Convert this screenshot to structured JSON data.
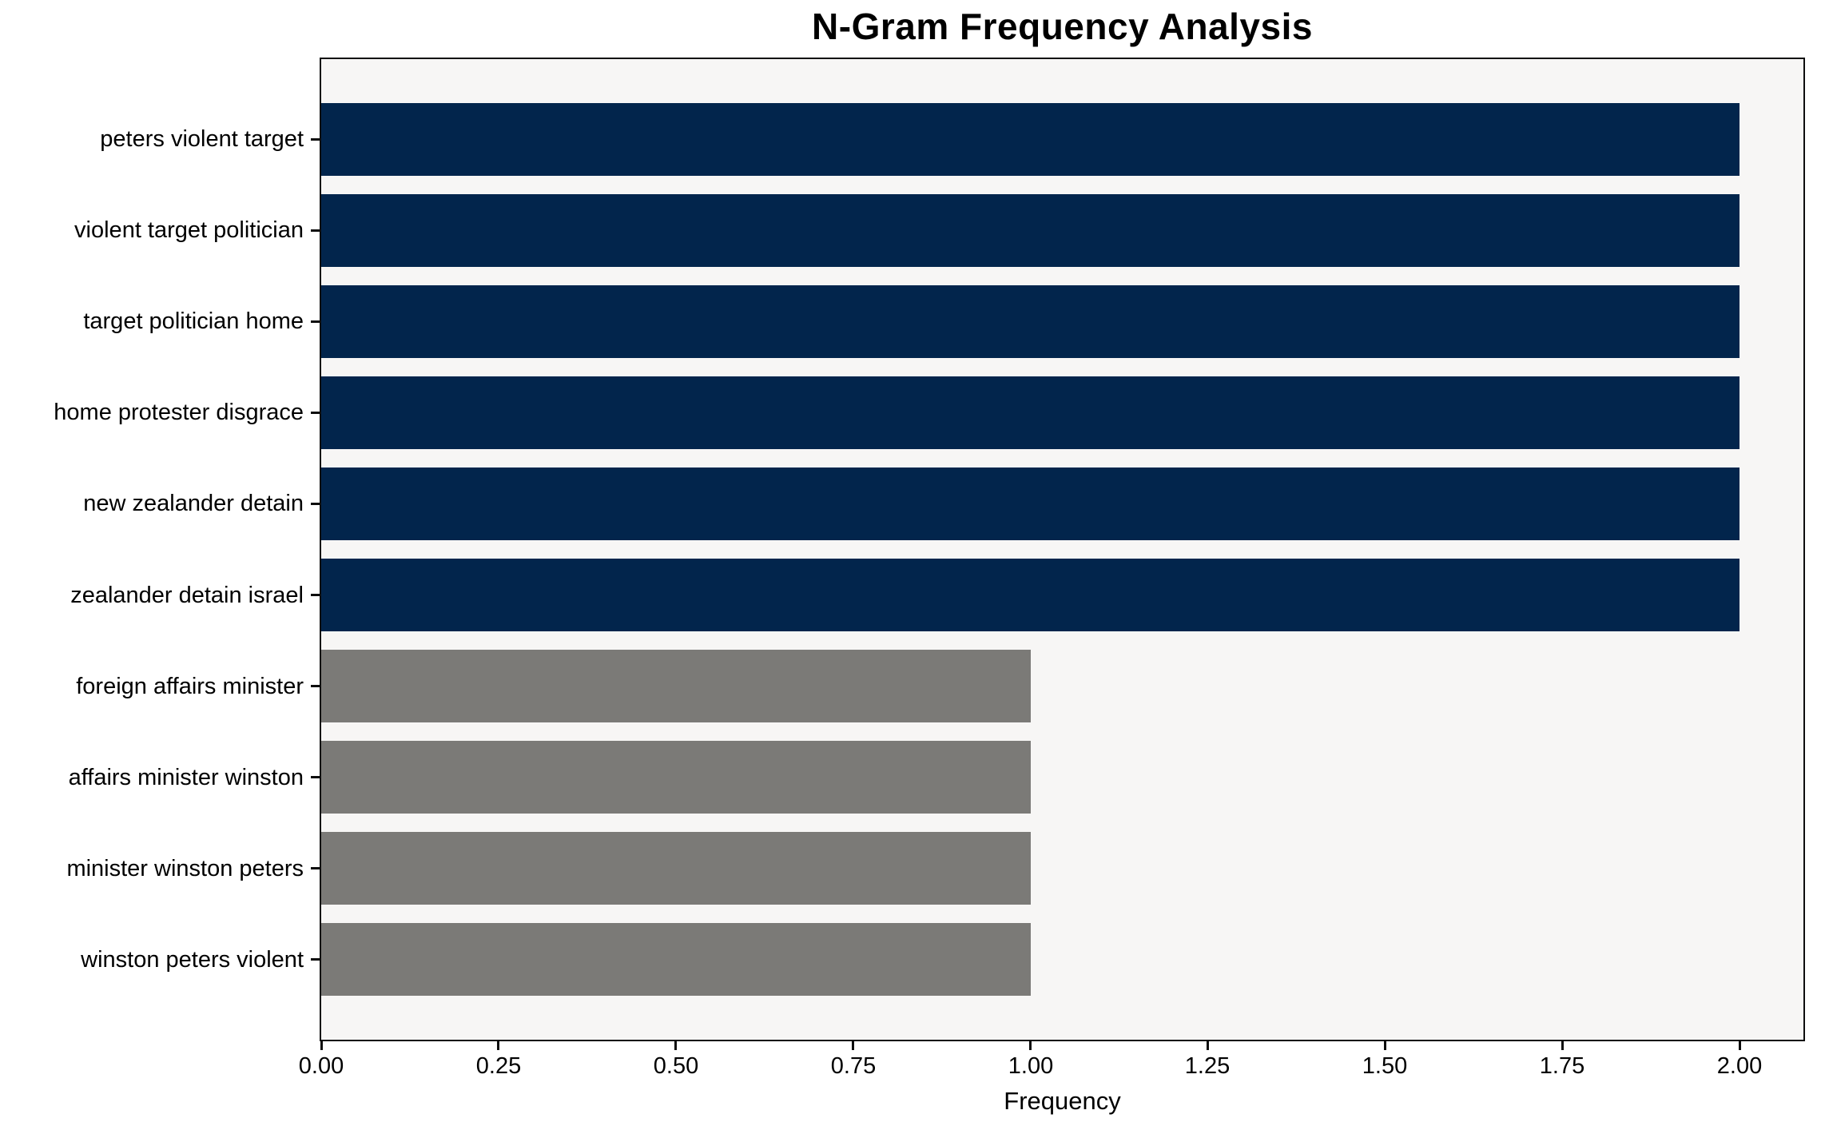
{
  "chart_data": {
    "type": "bar",
    "orientation": "horizontal",
    "title": "N-Gram Frequency Analysis",
    "xlabel": "Frequency",
    "ylabel": "",
    "categories": [
      "peters violent target",
      "violent target politician",
      "target politician home",
      "home protester disgrace",
      "new zealander detain",
      "zealander detain israel",
      "foreign affairs minister",
      "affairs minister winston",
      "minister winston peters",
      "winston peters violent"
    ],
    "values": [
      2,
      2,
      2,
      2,
      2,
      2,
      1,
      1,
      1,
      1
    ],
    "bar_colors": [
      "#02254c",
      "#02254c",
      "#02254c",
      "#02254c",
      "#02254c",
      "#02254c",
      "#7b7a77",
      "#7b7a77",
      "#7b7a77",
      "#7b7a77"
    ],
    "x_ticks": [
      "0.00",
      "0.25",
      "0.50",
      "0.75",
      "1.00",
      "1.25",
      "1.50",
      "1.75",
      "2.00"
    ],
    "xlim": [
      0,
      2.09
    ],
    "grid": false,
    "legend": "none",
    "plot_background": "#f7f6f5",
    "figure_background": "#ffffff",
    "spine_color": "#0d0d0d",
    "text_color": "#000000"
  }
}
